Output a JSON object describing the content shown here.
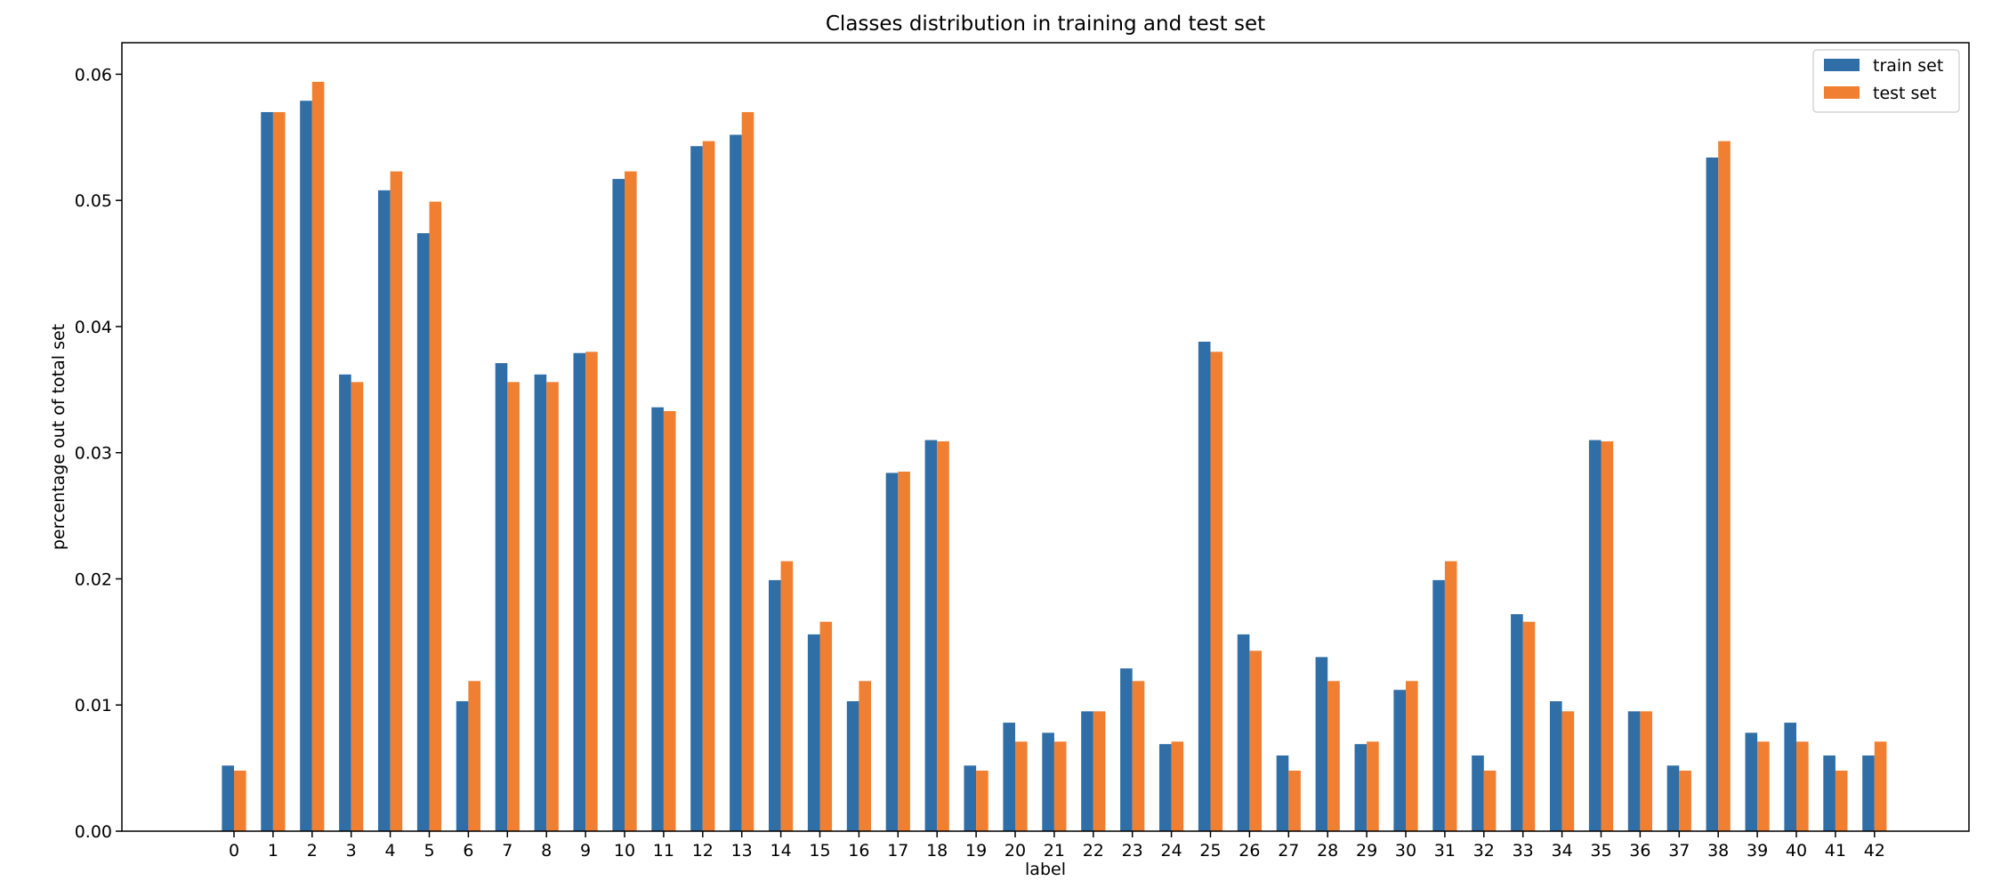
{
  "chart_data": {
    "type": "bar",
    "title": "Classes distribution in training and test set",
    "xlabel": "label",
    "ylabel": "percentage out of total set",
    "ylim": [
      0,
      0.0625
    ],
    "yticks": [
      "0.00",
      "0.01",
      "0.02",
      "0.03",
      "0.04",
      "0.05",
      "0.06"
    ],
    "grid": false,
    "legend_position": "top-right",
    "categories": [
      "0",
      "1",
      "2",
      "3",
      "4",
      "5",
      "6",
      "7",
      "8",
      "9",
      "10",
      "11",
      "12",
      "13",
      "14",
      "15",
      "16",
      "17",
      "18",
      "19",
      "20",
      "21",
      "22",
      "23",
      "24",
      "25",
      "26",
      "27",
      "28",
      "29",
      "30",
      "31",
      "32",
      "33",
      "34",
      "35",
      "36",
      "37",
      "38",
      "39",
      "40",
      "41",
      "42"
    ],
    "series": [
      {
        "name": "train set",
        "color": "#2f6ea6",
        "values": [
          0.0052,
          0.057,
          0.0579,
          0.0362,
          0.0508,
          0.0474,
          0.0103,
          0.0371,
          0.0362,
          0.0379,
          0.0517,
          0.0336,
          0.0543,
          0.0552,
          0.0199,
          0.0156,
          0.0103,
          0.0284,
          0.031,
          0.0052,
          0.0086,
          0.0078,
          0.0095,
          0.0129,
          0.0069,
          0.0388,
          0.0156,
          0.006,
          0.0138,
          0.0069,
          0.0112,
          0.0199,
          0.006,
          0.0172,
          0.0103,
          0.031,
          0.0095,
          0.0052,
          0.0534,
          0.0078,
          0.0086,
          0.006,
          0.006
        ]
      },
      {
        "name": "test set",
        "color": "#f07f32",
        "values": [
          0.0048,
          0.057,
          0.0594,
          0.0356,
          0.0523,
          0.0499,
          0.0119,
          0.0356,
          0.0356,
          0.038,
          0.0523,
          0.0333,
          0.0547,
          0.057,
          0.0214,
          0.0166,
          0.0119,
          0.0285,
          0.0309,
          0.0048,
          0.0071,
          0.0071,
          0.0095,
          0.0119,
          0.0071,
          0.038,
          0.0143,
          0.0048,
          0.0119,
          0.0071,
          0.0119,
          0.0214,
          0.0048,
          0.0166,
          0.0095,
          0.0309,
          0.0095,
          0.0048,
          0.0547,
          0.0071,
          0.0071,
          0.0048,
          0.0071
        ]
      }
    ]
  }
}
